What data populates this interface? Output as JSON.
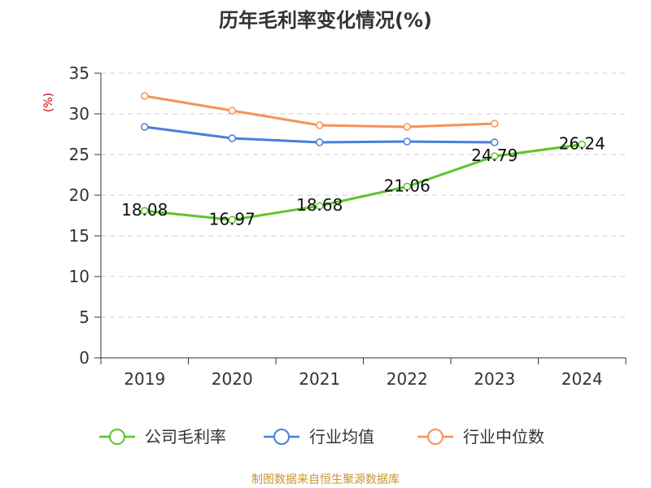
{
  "chart_data": {
    "type": "line",
    "title": "历年毛利率变化情况(%)",
    "ylabel": "(%)",
    "xlabel": "",
    "categories": [
      "2019",
      "2020",
      "2021",
      "2022",
      "2023",
      "2024"
    ],
    "ylim": [
      0,
      35
    ],
    "yticks": [
      0,
      5,
      10,
      15,
      20,
      25,
      30,
      35
    ],
    "grid": true,
    "legend_position": "bottom",
    "series": [
      {
        "name": "公司毛利率",
        "color": "#5cc52a",
        "values": [
          18.08,
          16.97,
          18.68,
          21.06,
          24.79,
          26.24
        ],
        "labels": [
          "18.08",
          "16.97",
          "18.68",
          "21.06",
          "24.79",
          "26.24"
        ]
      },
      {
        "name": "行业均值",
        "color": "#4a7fdb",
        "values": [
          28.4,
          27.0,
          26.5,
          26.6,
          26.5,
          null
        ],
        "labels": []
      },
      {
        "name": "行业中位数",
        "color": "#f59256",
        "values": [
          32.2,
          30.4,
          28.6,
          28.4,
          28.8,
          null
        ],
        "labels": []
      }
    ]
  },
  "source_note": "制图数据来自恒生聚源数据库"
}
